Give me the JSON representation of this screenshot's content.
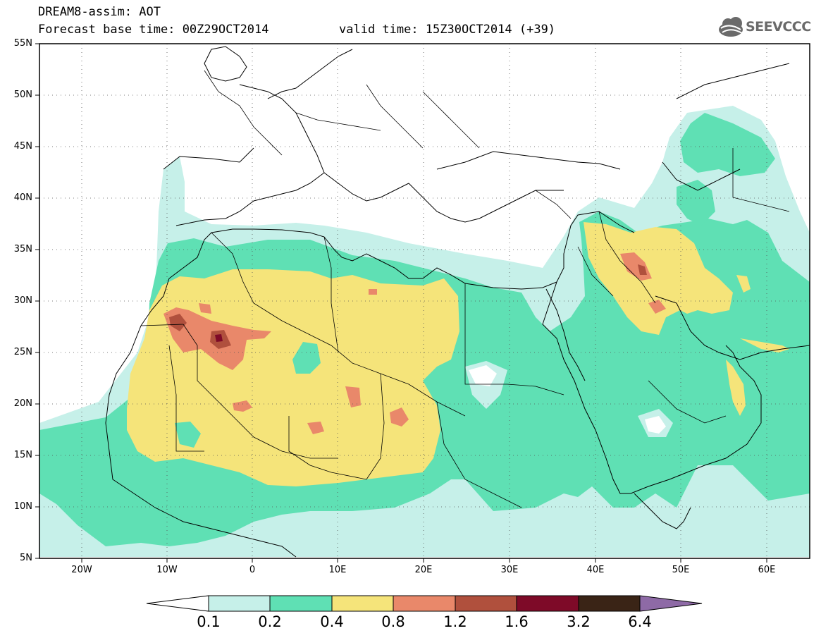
{
  "header": {
    "title": "DREAM8-assim: AOT",
    "forecast_base": "Forecast base time: 00Z29OCT2014",
    "valid_time": "valid time: 15Z30OCT2014 (+39)",
    "logo_text": "SEEVCCC"
  },
  "map": {
    "lat_range": [
      5,
      55
    ],
    "lon_range": [
      -25,
      65
    ],
    "lat_ticks": [
      "55N",
      "50N",
      "45N",
      "40N",
      "35N",
      "30N",
      "25N",
      "20N",
      "15N",
      "10N",
      "5N"
    ],
    "lon_ticks": [
      "20W",
      "10W",
      "0",
      "10E",
      "20E",
      "30E",
      "40E",
      "50E",
      "60E"
    ],
    "grid": "dotted"
  },
  "colorbar": {
    "labels": [
      "0.1",
      "0.2",
      "0.4",
      "0.8",
      "1.2",
      "1.6",
      "3.2",
      "6.4"
    ],
    "colors": [
      "#ffffff",
      "#c6f0e9",
      "#5fe0b4",
      "#f5e47a",
      "#e9886a",
      "#b0503d",
      "#7e0a28",
      "#3a2416",
      "#8e6aa6"
    ]
  },
  "colors": {
    "c1": "#c6f0e9",
    "c2": "#5fe0b4",
    "c3": "#f5e47a",
    "c4": "#e9886a",
    "c5": "#b0503d",
    "c6": "#7e0a28"
  }
}
